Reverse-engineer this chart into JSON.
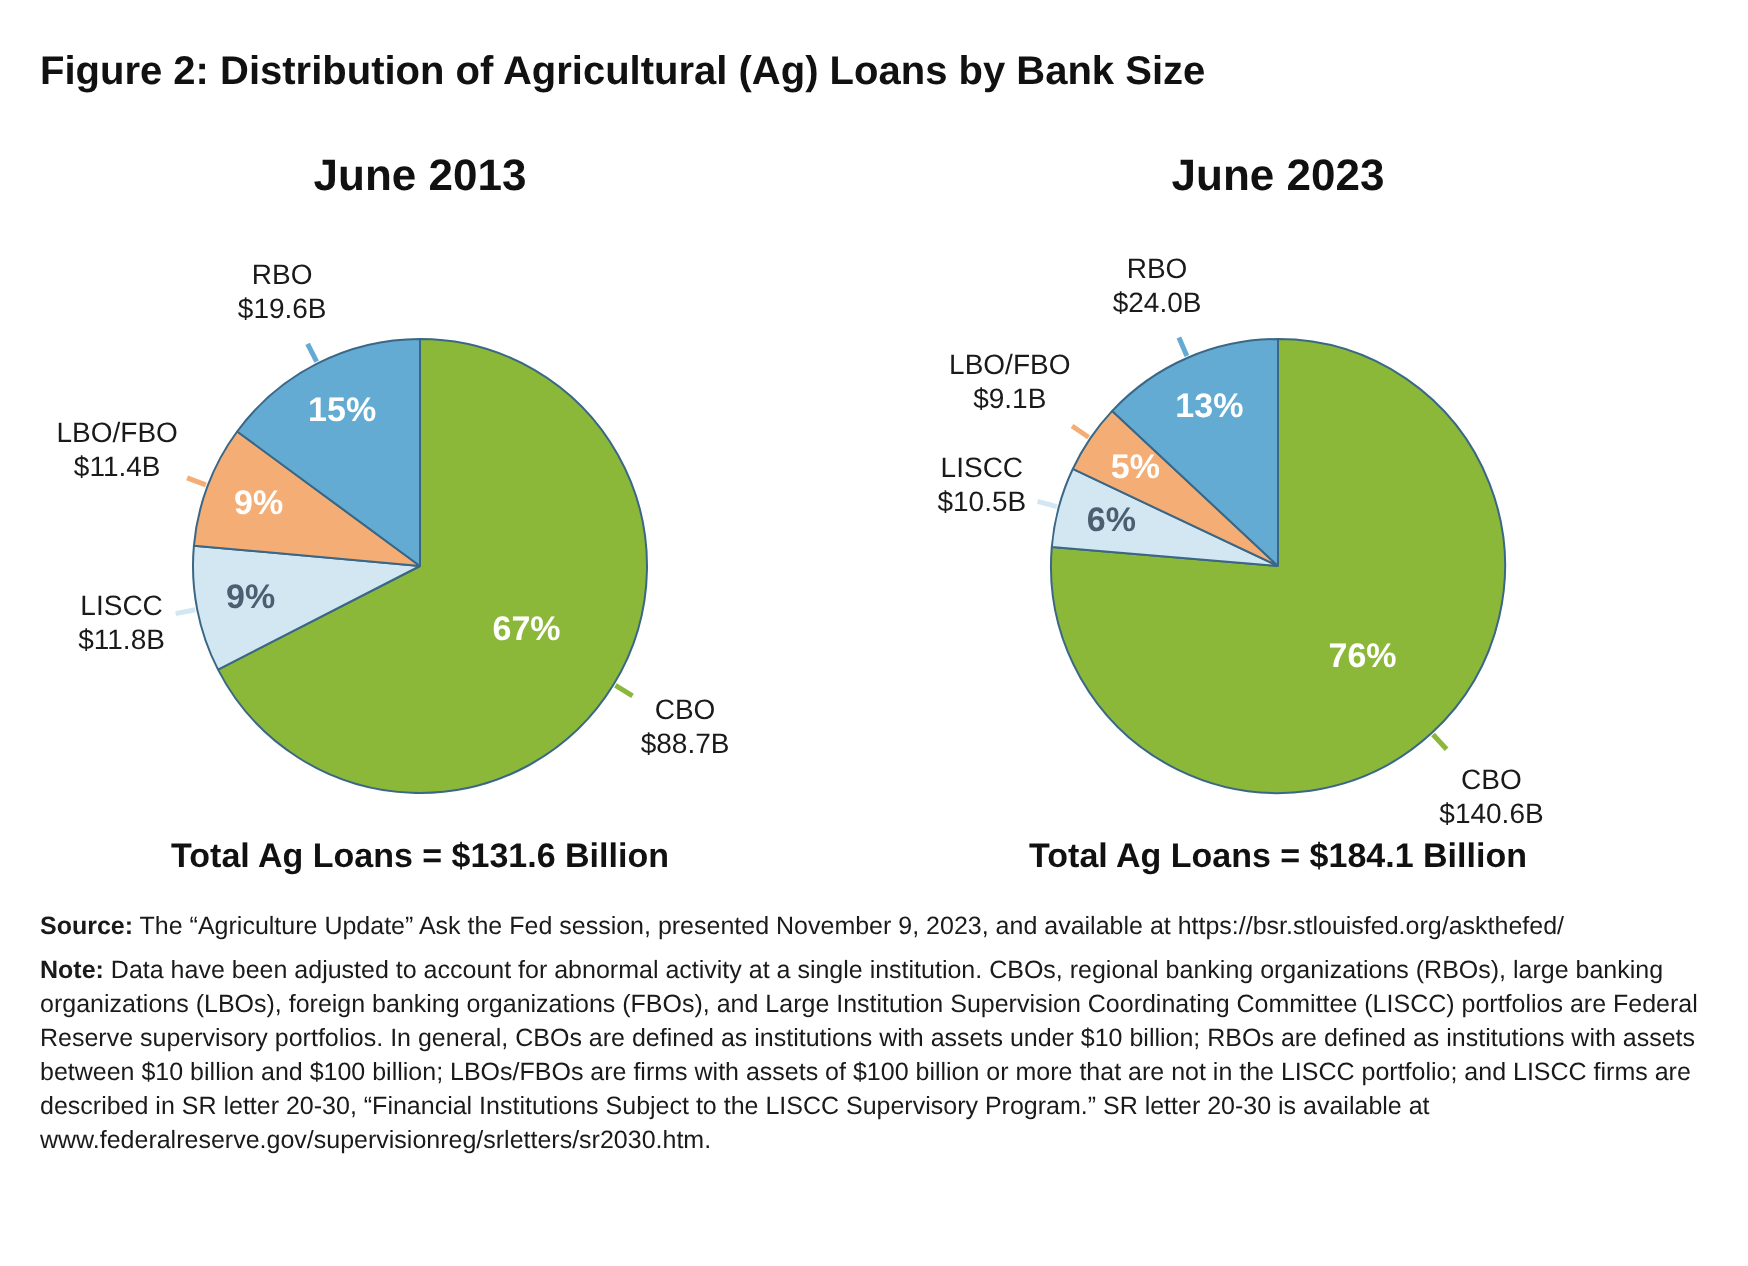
{
  "chart_data": [
    {
      "type": "other",
      "title": "Figure 2: Distribution of Agricultural (Ag) Loans by Bank Size"
    },
    {
      "type": "pie",
      "title": "June 2013",
      "categories": [
        "CBO",
        "LISCC",
        "LBO/FBO",
        "RBO"
      ],
      "values": [
        88.7,
        11.8,
        11.4,
        19.6
      ],
      "colors": [
        "#8cb83a",
        "#d3e7f3",
        "#f4ad74",
        "#63abd2"
      ],
      "value_labels": [
        "$88.7B",
        "$11.8B",
        "$11.4B",
        "$19.6B"
      ],
      "annotations": [
        {
          "text": "67%",
          "x": "CBO"
        },
        {
          "text": "9%",
          "x": "LISCC"
        },
        {
          "text": "9%",
          "x": "LBO/FBO"
        },
        {
          "text": "15%",
          "x": "RBO"
        },
        "Total Ag Loans = $131.6 Billion"
      ]
    },
    {
      "type": "pie",
      "title": "June 2023",
      "categories": [
        "CBO",
        "LISCC",
        "LBO/FBO",
        "RBO"
      ],
      "values": [
        140.6,
        10.5,
        9.1,
        24.0
      ],
      "colors": [
        "#8cb83a",
        "#d3e7f3",
        "#f4ad74",
        "#63abd2"
      ],
      "value_labels": [
        "$140.6B",
        "$10.5B",
        "$9.1B",
        "$24.0B"
      ],
      "annotations": [
        {
          "text": "76%",
          "x": "CBO"
        },
        {
          "text": "6%",
          "x": "LISCC"
        },
        {
          "text": "5%",
          "x": "LBO/FBO"
        },
        {
          "text": "13%",
          "x": "RBO"
        },
        "Total Ag Loans = $184.1 Billion"
      ]
    },
    {
      "type": "other",
      "annotations": [
        "Source: The “Agriculture Update” Ask the Fed session, presented November 9, 2023, and available at https://bsr.stlouisfed.org/askthefed/",
        "Note: Data have been adjusted to account for abnormal activity at a single institution. CBOs, regional banking organizations (RBOs), large banking organizations (LBOs), foreign banking organizations (FBOs), and Large Institution Supervision Coordinating Committee (LISCC) portfolios are Federal Reserve supervisory portfolios. In general, CBOs are defined as institutions with assets under $10 billion; RBOs are defined as institutions with assets between $10 billion and $100 billion; LBOs/FBOs are firms with assets of $100 billion or more that are not in the LISCC portfolio; and LISCC firms are described in SR letter 20-30, “Financial Institutions Subject to the LISCC Supervisory Program.” SR letter 20-30 is available at www.federalreserve.gov/supervisionreg/srletters/sr2030.htm."
      ]
    }
  ]
}
